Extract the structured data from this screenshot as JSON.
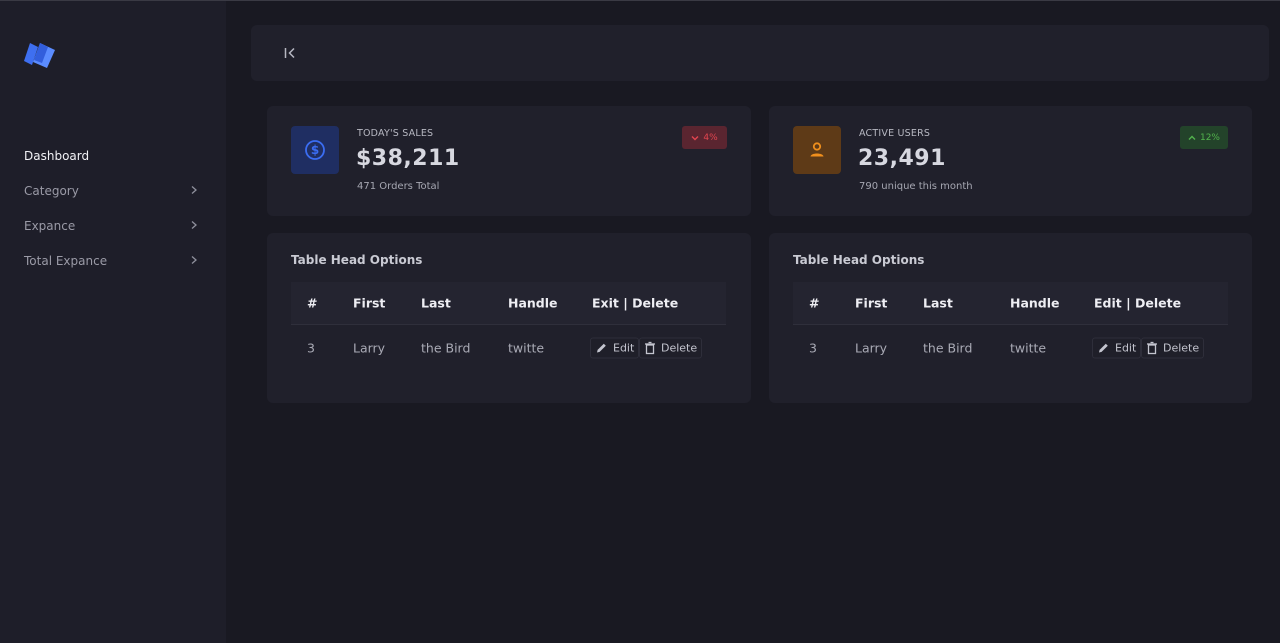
{
  "sidebar": {
    "items": [
      {
        "label": "Dashboard",
        "active": true
      },
      {
        "label": "Category",
        "chevron": "chevron-right-icon"
      },
      {
        "label": "Expance",
        "chevron": "chevron-right-icon"
      },
      {
        "label": "Total Expance",
        "chevron": "chevron-right-icon"
      }
    ]
  },
  "topbar": {
    "collapse_icon": "collapse-sidebar-icon"
  },
  "stats": [
    {
      "label": "TODAY'S SALES",
      "value": "$38,211",
      "sub": "471 Orders Total",
      "badge": "4%",
      "badge_direction": "down",
      "icon": "dollar-icon",
      "color": "#2c59d8",
      "badge_color": "#e2454f"
    },
    {
      "label": "ACTIVE USERS",
      "value": "23,491",
      "sub": "790 unique this month",
      "badge": "12%",
      "badge_direction": "up",
      "icon": "user-icon",
      "color": "#e0891c",
      "badge_color": "#52b34d"
    }
  ],
  "tables": [
    {
      "title": "Table Head Options",
      "headers": [
        "#",
        "First",
        "Last",
        "Handle",
        "Exit | Delete"
      ],
      "rows": [
        {
          "num": "3",
          "first": "Larry",
          "last": "the Bird",
          "handle": "twitte",
          "edit": "Edit",
          "delete": "Delete"
        }
      ]
    },
    {
      "title": "Table Head Options",
      "headers": [
        "#",
        "First",
        "Last",
        "Handle",
        "Edit | Delete"
      ],
      "rows": [
        {
          "num": "3",
          "first": "Larry",
          "last": "the Bird",
          "handle": "twitte",
          "edit": "Edit",
          "delete": "Delete"
        }
      ]
    }
  ]
}
